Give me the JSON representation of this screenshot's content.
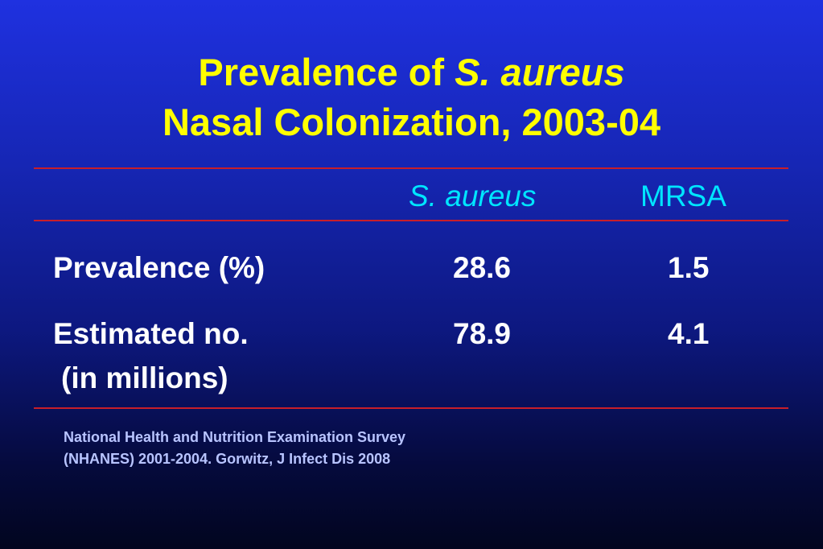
{
  "title": {
    "line1_prefix": "Prevalence of ",
    "line1_italic": "S. aureus",
    "line2": "Nasal Colonization, 2003-04"
  },
  "table": {
    "columns": [
      "S. aureus",
      "MRSA"
    ],
    "rows": [
      {
        "label": "Prevalence (%)",
        "label_cont": "",
        "values": [
          "28.6",
          "1.5"
        ]
      },
      {
        "label": "Estimated no.",
        "label_cont": "(in millions)",
        "values": [
          "78.9",
          "4.1"
        ]
      }
    ]
  },
  "source": {
    "line1": "National Health and Nutrition Examination Survey",
    "line2": "(NHANES) 2001-2004.  Gorwitz, J Infect Dis 2008"
  },
  "colors": {
    "title": "#ffff00",
    "column_header": "#00e5ff",
    "rule": "#c81e2a",
    "source_text": "#b8c4ff"
  }
}
